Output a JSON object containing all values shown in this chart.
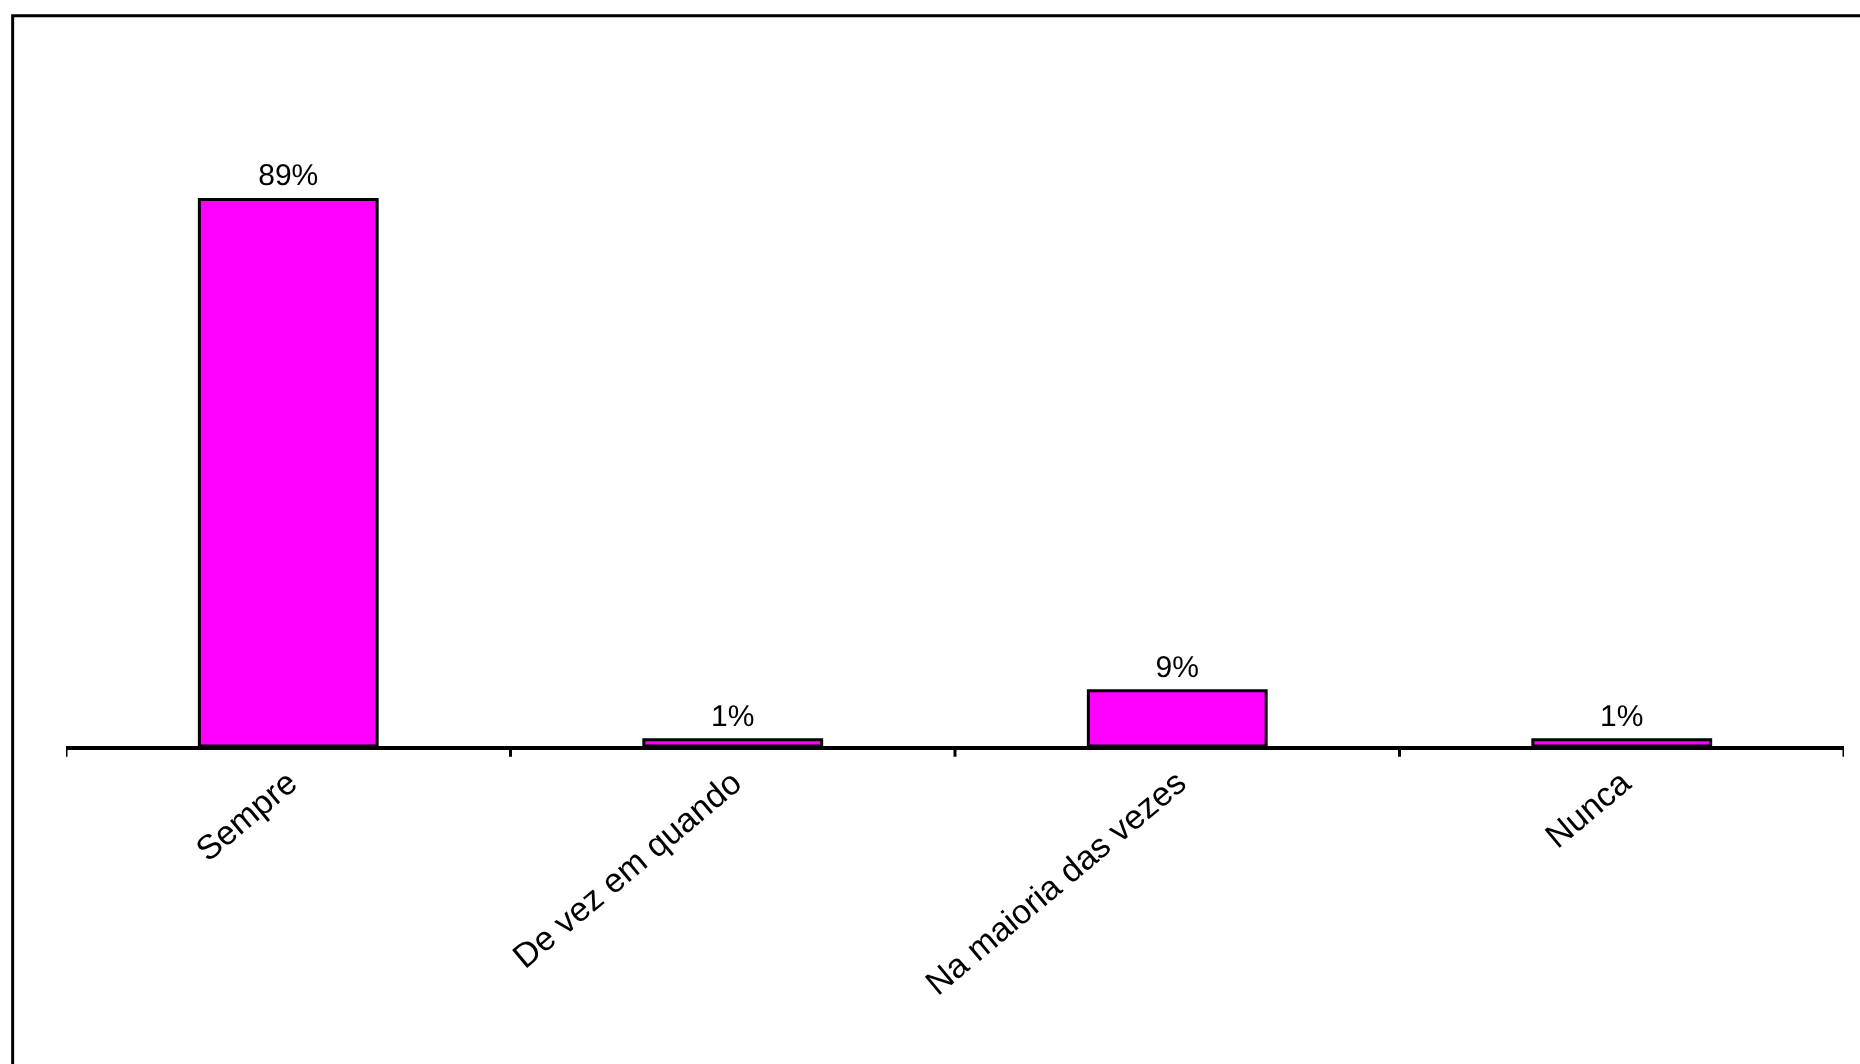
{
  "chart_data": {
    "type": "bar",
    "categories": [
      "Sempre",
      "De vez em quando",
      "Na maioria das vezes",
      "Nunca"
    ],
    "values": [
      89,
      1,
      9,
      1
    ],
    "value_labels": [
      "89%",
      "1%",
      "9%",
      "1%"
    ],
    "color": "#ff00ff",
    "legend": false
  }
}
